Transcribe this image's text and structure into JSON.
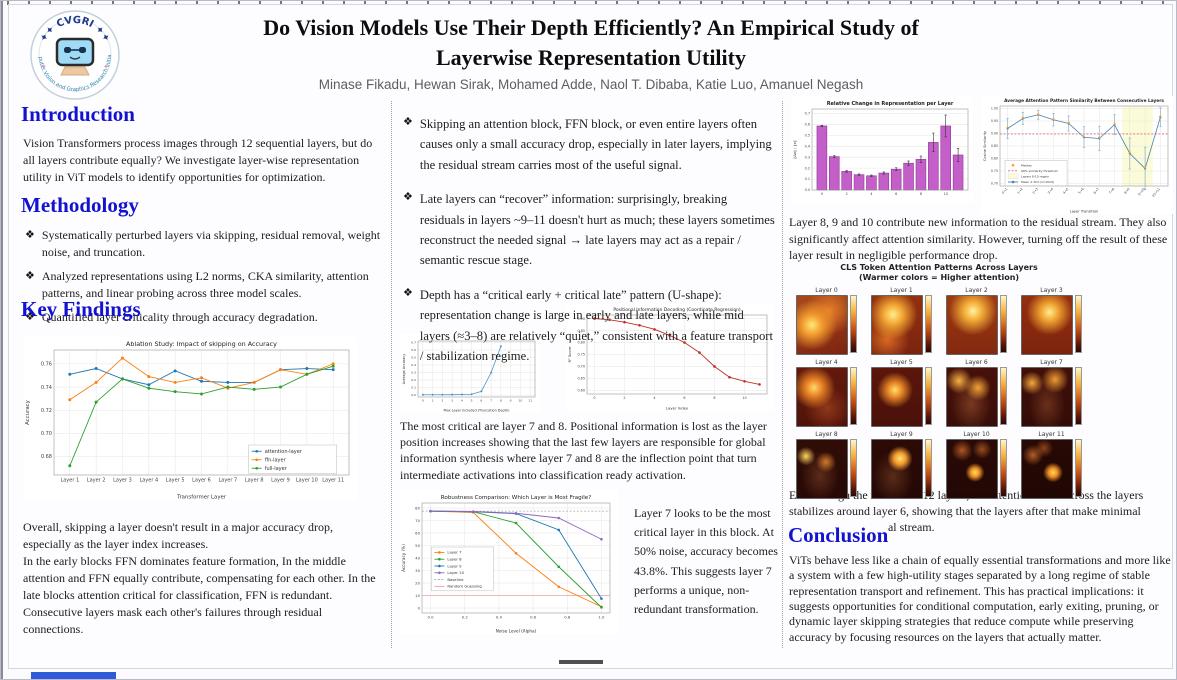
{
  "header": {
    "logo": {
      "org": "CVGRI",
      "ring_text": "Computer Vision and Graphics Research Initiative"
    },
    "title_line1": "Do Vision Models Use Their Depth Efficiently? An Empirical Study of",
    "title_line2": "Layerwise Representation Utility",
    "authors": "Minase Fikadu, Hewan Sirak, Mohamed Adde, Naol T. Dibaba, Katie Luo, Amanuel Negash"
  },
  "ui": {
    "bullet_char": "❖"
  },
  "left": {
    "intro_heading": "Introduction",
    "intro_text": "Vision Transformers process images through 12 sequential layers, but do all layers contribute equally? We investigate layer-wise representation utility in ViT models to identify opportunities for optimization.",
    "method_heading": "Methodology",
    "method_bullets": [
      "Systematically perturbed layers via skipping, residual removal, weight noise, and truncation.",
      "Analyzed representations using L2 norms, CKA similarity, attention patterns, and linear probing across three model scales.",
      "Quantified layer criticality through accuracy degradation."
    ],
    "findings_heading": "Key Findings",
    "findings_text1": "Overall, skipping a layer doesn't result in a major accuracy drop, especially as the layer index increases.",
    "findings_text2": "In the early blocks FFN dominates feature formation, In the middle attention and FFN equally contribute, compensating for each other. In the late blocks attention critical for classification, FFN is redundant. Consecutive layers mask each other's failures through residual connections."
  },
  "middle": {
    "bullets": [
      "Skipping an attention block, FFN block, or even entire layers often causes only a small accuracy drop, especially in later layers, implying the residual stream carries most of the useful signal.",
      "Late layers can “recover” information: surprisingly, breaking residuals in layers ~9–11 doesn't hurt as much; these layers sometimes reconstruct the needed signal → late layers may act as a repair / semantic rescue stage.",
      "Depth has a “critical early + critical late” pattern (U-shape): representation change is large in early and late layers, while mid layers (≈3–8) are relatively “quiet,” consistent with a feature transport / stabilization regime."
    ],
    "critical_text": "The most critical are layer 7 and 8. Positional information is lost as the layer position increases showing that the last few layers are responsible for global information synthesis where layer 7 and 8 are the inflection point that turn intermediate activations into classification ready activation.",
    "fragile_note": "Layer 7 looks to be the most critical layer in this block. At 50% noise, accuracy becomes 43.8%. This suggests layer 7 performs a unique, non-redundant transformation."
  },
  "right": {
    "residual_text": "Layer 8, 9 and 10 contribute new information to the residual stream. They also significantly affect attention similarity. However, turning off the result of these layer result in negligible performance drop.",
    "attention_grid": {
      "title": "CLS Token Attention Patterns Across Layers",
      "subtitle": "(Warmer colors = Higher attention)",
      "panels": [
        "Layer 0",
        "Layer 1",
        "Layer 2",
        "Layer 3",
        "Layer 4",
        "Layer 5",
        "Layer 6",
        "Layer 7",
        "Layer 8",
        "Layer 9",
        "Layer 10",
        "Layer 11"
      ]
    },
    "attention_text": "Even though the model has 12 layers, the attention focus across the layers stabilizes around layer 6, showing that the layers after that make minimal updates to the residual stream.",
    "conclusion_heading": "Conclusion",
    "conclusion_text": "ViTs behave less like a chain of equally essential transformations and more like a system with a few high-utility stages separated by a long regime of stable representation transport and refinement. This has practical implications: it suggests opportunities for conditional computation, early exiting, pruning, or dynamic layer skipping strategies that reduce compute while preserving accuracy by focusing resources on the layers that actually matter."
  },
  "chart_data": [
    {
      "id": "ablation",
      "type": "line",
      "title": "Ablation Study: Impact of skipping on Accuracy",
      "xlabel": "Transformer Layer",
      "ylabel": "Accuracy",
      "x": [
        1,
        2,
        3,
        4,
        5,
        6,
        7,
        8,
        9,
        10,
        11
      ],
      "xticks": [
        1,
        2,
        3,
        4,
        5,
        6,
        7,
        8,
        9,
        10,
        11
      ],
      "xtick_labels": [
        "Layer 1",
        "Layer 2",
        "Layer 3",
        "Layer 4",
        "Layer 5",
        "Layer 6",
        "Layer 7",
        "Layer 8",
        "Layer 9",
        "Layer 10",
        "Layer 11"
      ],
      "xlim": [
        0.4,
        11.6
      ],
      "ylim": [
        0.664,
        0.772
      ],
      "yticks": [
        0.68,
        0.7,
        0.72,
        0.74,
        0.76
      ],
      "ytick_labels": [
        "0.68",
        "0.70",
        "0.72",
        "0.74",
        "0.76"
      ],
      "series": [
        {
          "name": "attention-layer",
          "color": "#1f77b4",
          "values": [
            0.751,
            0.756,
            0.747,
            0.742,
            0.754,
            0.745,
            0.744,
            0.744,
            0.755,
            0.756,
            0.755
          ]
        },
        {
          "name": "ffn-layer",
          "color": "#ff7f0e",
          "values": [
            0.729,
            0.744,
            0.765,
            0.749,
            0.744,
            0.748,
            0.739,
            0.744,
            0.755,
            0.751,
            0.76
          ]
        },
        {
          "name": "full-layer",
          "color": "#2ca02c",
          "values": [
            0.672,
            0.727,
            0.747,
            0.739,
            0.736,
            0.734,
            0.74,
            0.738,
            0.74,
            0.751,
            0.758
          ]
        }
      ],
      "legend_items": [
        {
          "label": "attention-layer",
          "color": "#1f77b4",
          "kind": "line"
        },
        {
          "label": "ffn-layer",
          "color": "#ff7f0e",
          "kind": "line"
        },
        {
          "label": "full-layer",
          "color": "#2ca02c",
          "kind": "line"
        }
      ]
    },
    {
      "id": "truncation",
      "type": "line",
      "title": "",
      "xlabel": "Max Layer Included (Truncation Depth)",
      "ylabel": "Average Accuracy",
      "x": [
        0,
        1,
        2,
        3,
        4,
        5,
        6,
        7,
        8
      ],
      "xticks": [
        0,
        1,
        2,
        3,
        4,
        5,
        6,
        7,
        8,
        9,
        10,
        11
      ],
      "xtick_labels": [
        "0",
        "1",
        "2",
        "3",
        "4",
        "5",
        "6",
        "7",
        "8",
        "9",
        "10",
        "11"
      ],
      "xlim": [
        -0.5,
        11.5
      ],
      "ylim": [
        -0.025,
        0.72
      ],
      "yticks": [
        0.0,
        0.1,
        0.2,
        0.3,
        0.4,
        0.5,
        0.6,
        0.7
      ],
      "ytick_labels": [
        "0.0",
        "0.1",
        "0.2",
        "0.3",
        "0.4",
        "0.5",
        "0.6",
        "0.7"
      ],
      "series": [
        {
          "name": "accuracy",
          "color": "#4d96c9",
          "values": [
            0.005,
            0.005,
            0.005,
            0.006,
            0.008,
            0.012,
            0.05,
            0.3,
            0.65
          ]
        }
      ]
    },
    {
      "id": "positional",
      "type": "line",
      "title": "Positional Information Decoding (Coordinate Regression)",
      "xlabel": "Layer Index",
      "ylabel": "R² Score",
      "x": [
        0,
        1,
        2,
        3,
        4,
        5,
        6,
        7,
        8,
        9,
        10,
        11
      ],
      "xticks": [
        0,
        2,
        4,
        6,
        8,
        10
      ],
      "xtick_labels": [
        "0",
        "2",
        "4",
        "6",
        "8",
        "10"
      ],
      "xlim": [
        -0.5,
        11.5
      ],
      "ylim": [
        0.585,
        0.915
      ],
      "yticks": [
        0.6,
        0.65,
        0.7,
        0.75,
        0.8,
        0.85,
        0.9
      ],
      "ytick_labels": [
        "0.60",
        "0.65",
        "0.70",
        "0.75",
        "0.80",
        "0.85",
        "0.90"
      ],
      "series": [
        {
          "name": "R² score",
          "color": "#c03028",
          "values": [
            0.9,
            0.895,
            0.885,
            0.872,
            0.855,
            0.83,
            0.8,
            0.758,
            0.7,
            0.655,
            0.638,
            0.625
          ]
        }
      ]
    },
    {
      "id": "robustness",
      "type": "line",
      "title": "Robustness Comparison: Which Layer is Most Fragile?",
      "xlabel": "Noise Level (Alpha)",
      "ylabel": "Accuracy (%)",
      "x": [
        0.0,
        0.25,
        0.5,
        0.75,
        1.0
      ],
      "xticks": [
        0.0,
        0.2,
        0.4,
        0.6,
        0.8,
        1.0
      ],
      "xtick_labels": [
        "0.0",
        "0.2",
        "0.4",
        "0.6",
        "0.8",
        "1.0"
      ],
      "xlim": [
        -0.05,
        1.05
      ],
      "ylim": [
        -4,
        84
      ],
      "yticks": [
        0,
        10,
        20,
        30,
        40,
        50,
        60,
        70,
        80
      ],
      "ytick_labels": [
        "0",
        "10",
        "20",
        "30",
        "40",
        "50",
        "60",
        "70",
        "80"
      ],
      "hlines": [
        {
          "y": 77.5,
          "color": "#aaaaaa",
          "dash": true
        },
        {
          "y": 10,
          "color": "#f4a0a0",
          "dash": false
        }
      ],
      "series": [
        {
          "name": "Layer 7",
          "color": "#ff7f0e",
          "values": [
            77.5,
            76.5,
            43.8,
            17,
            1
          ]
        },
        {
          "name": "Layer 8",
          "color": "#2ca02c",
          "values": [
            77.5,
            77,
            68,
            33,
            0.5
          ]
        },
        {
          "name": "Layer 9",
          "color": "#1f77b4",
          "values": [
            77.5,
            77,
            75.5,
            62.5,
            7.5
          ]
        },
        {
          "name": "Layer 10",
          "color": "#9467bd",
          "values": [
            77.5,
            77.2,
            75.8,
            72,
            55
          ]
        }
      ],
      "legend_items": [
        {
          "label": "Layer 7",
          "color": "#ff7f0e",
          "kind": "line"
        },
        {
          "label": "Layer 8",
          "color": "#2ca02c",
          "kind": "line"
        },
        {
          "label": "Layer 9",
          "color": "#1f77b4",
          "kind": "line"
        },
        {
          "label": "Layer 10",
          "color": "#9467bd",
          "kind": "line"
        },
        {
          "label": "Baseline",
          "color": "#aaaaaa",
          "kind": "dash"
        },
        {
          "label": "Random Guessing",
          "color": "#f4a0a0",
          "kind": "plain"
        }
      ]
    },
    {
      "id": "relchange",
      "type": "bar",
      "title": "Relative Change in Representation per Layer",
      "xlabel": "",
      "ylabel": "‖Δx‖ / ‖x‖",
      "x": [
        0,
        1,
        2,
        3,
        4,
        5,
        6,
        7,
        8,
        9,
        10,
        11
      ],
      "xticks": [
        0,
        2,
        4,
        6,
        8,
        10
      ],
      "xtick_labels": [
        "0",
        "2",
        "4",
        "6",
        "8",
        "10"
      ],
      "xlim": [
        -0.8,
        11.8
      ],
      "ylim": [
        0,
        0.74
      ],
      "yticks": [
        0,
        0.1,
        0.2,
        0.3,
        0.4,
        0.5,
        0.6,
        0.7
      ],
      "ytick_labels": [
        "0.0",
        "0.1",
        "0.2",
        "0.3",
        "0.4",
        "0.5",
        "0.6",
        "0.7"
      ],
      "grid_x": false,
      "values": [
        0.585,
        0.305,
        0.17,
        0.14,
        0.13,
        0.155,
        0.19,
        0.245,
        0.28,
        0.435,
        0.585,
        0.32
      ],
      "errors": [
        0.006,
        0.01,
        0.008,
        0.007,
        0.007,
        0.01,
        0.013,
        0.02,
        0.03,
        0.085,
        0.1,
        0.06
      ],
      "bar_color": "#c45fc9",
      "bar_edge": "#8e3a96"
    },
    {
      "id": "attnsim",
      "type": "line",
      "title": "Average Attention Pattern Similarity Between Consecutive Layers",
      "xlabel": "Layer Transition",
      "ylabel": "Cosine Similarity",
      "x": [
        0,
        1,
        2,
        3,
        4,
        5,
        6,
        7,
        8,
        9,
        10
      ],
      "xticks": [
        0,
        1,
        2,
        3,
        4,
        5,
        6,
        7,
        8,
        9,
        10
      ],
      "xtick_labels": [
        "0→1",
        "1→2",
        "2→3",
        "3→4",
        "4→5",
        "5→6",
        "6→7",
        "7→8",
        "8→9",
        "9→10",
        "10→11"
      ],
      "xlim": [
        -0.5,
        10.5
      ],
      "ylim": [
        0.69,
        1.01
      ],
      "yticks": [
        0.7,
        0.75,
        0.8,
        0.85,
        0.9,
        0.95,
        1.0
      ],
      "ytick_labels": [
        "0.70",
        "0.75",
        "0.80",
        "0.85",
        "0.90",
        "0.95",
        "1.00"
      ],
      "hlines": [
        {
          "y": 0.898,
          "color": "#e06060",
          "dash": true
        }
      ],
      "vspans": [
        {
          "x0": 7.5,
          "x1": 9.5,
          "color": "#fbfbd8"
        }
      ],
      "series": [
        {
          "name": "Mean ± Std (n=1024)",
          "color": "#4682b4",
          "err_color": "#7aa6cc",
          "values": [
            0.92,
            0.96,
            0.975,
            0.955,
            0.94,
            0.885,
            0.88,
            0.935,
            0.82,
            0.76,
            0.965
          ],
          "err": [
            0.04,
            0.025,
            0.018,
            0.025,
            0.03,
            0.042,
            0.048,
            0.04,
            0.062,
            0.085,
            0.038
          ]
        },
        {
          "name": "Median",
          "color": "#ff9f1c",
          "values": [
            0.924,
            0.963,
            0.977,
            0.957,
            0.943,
            0.888,
            0.884,
            0.938,
            0.824,
            0.764,
            0.968
          ],
          "line": false
        }
      ],
      "legend_items": [
        {
          "label": "Median",
          "color": "#ff9f1c",
          "kind": "dot"
        },
        {
          "label": "90% similarity threshold",
          "color": "#e06060",
          "kind": "dash"
        },
        {
          "label": "Layers 8-10 region",
          "color": "#fbfbd8",
          "kind": "box"
        },
        {
          "label": "Mean ± Std (n=1024)",
          "color": "#4682b4",
          "kind": "line"
        }
      ]
    }
  ]
}
